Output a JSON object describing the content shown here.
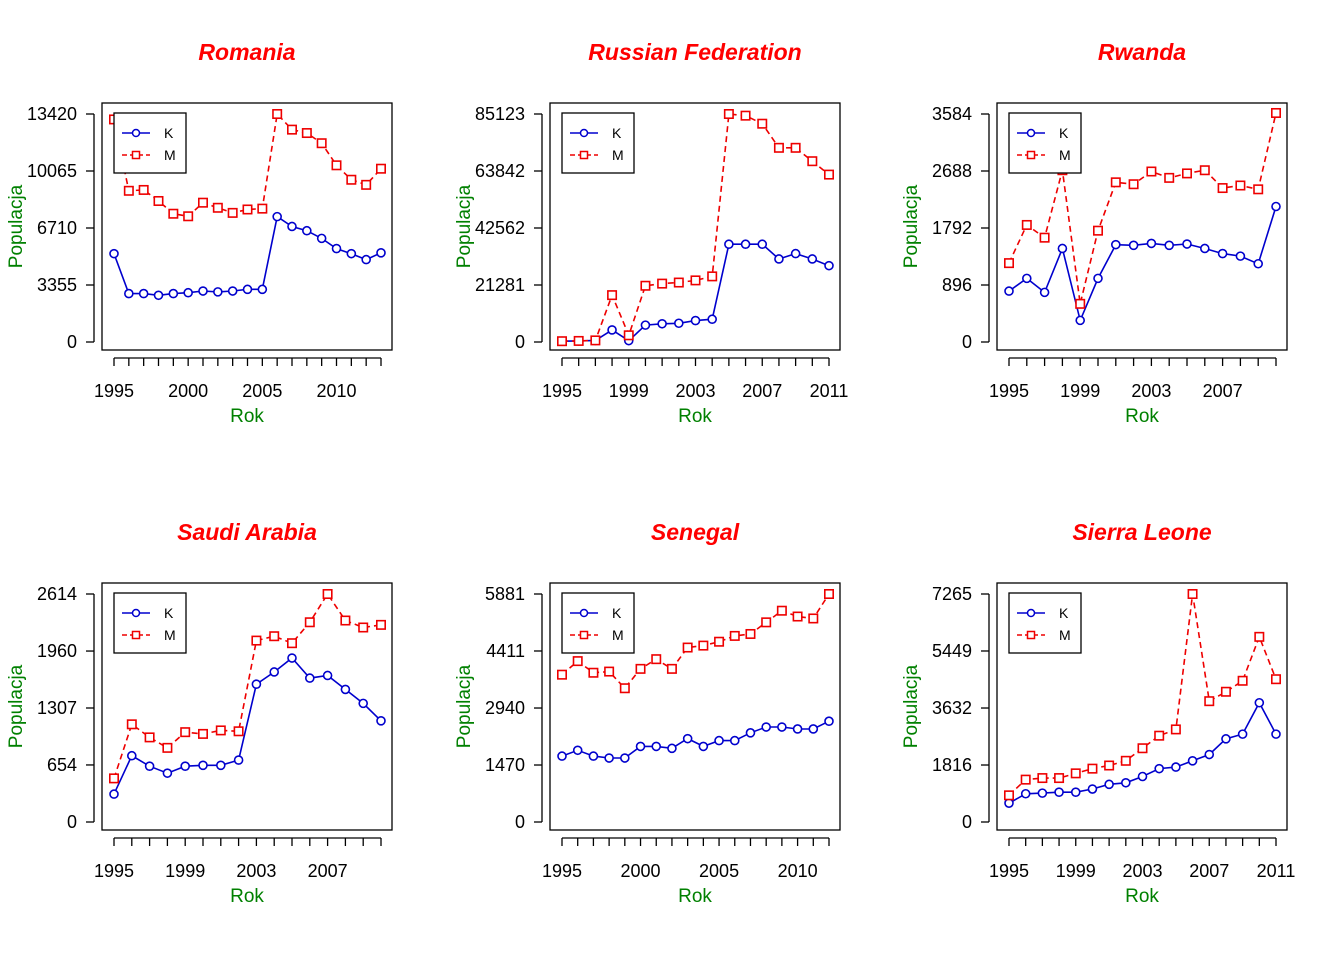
{
  "chart_data": [
    {
      "type": "line",
      "title": "Romania",
      "xlabel": "Rok",
      "ylabel": "Populacja",
      "x": [
        1995,
        1996,
        1997,
        1998,
        1999,
        2000,
        2001,
        2002,
        2003,
        2004,
        2005,
        2006,
        2007,
        2008,
        2009,
        2010,
        2011,
        2012,
        2013
      ],
      "xticks": [
        "1995",
        "2000",
        "2005",
        "2010"
      ],
      "yticks": [
        "0",
        "3355",
        "6710",
        "10065",
        "13420"
      ],
      "ylim": [
        0,
        13420
      ],
      "legend": "top-left",
      "series": [
        {
          "name": "K",
          "color": "#0000cd",
          "dash": false,
          "marker": "circle",
          "values": [
            5200,
            2850,
            2850,
            2750,
            2850,
            2900,
            3000,
            2950,
            3000,
            3100,
            3100,
            7380,
            6800,
            6550,
            6100,
            5500,
            5200,
            4850,
            5250
          ]
        },
        {
          "name": "M",
          "color": "#ee0000",
          "dash": true,
          "marker": "square",
          "values": [
            13100,
            8900,
            8950,
            8300,
            7550,
            7400,
            8200,
            7900,
            7600,
            7800,
            7850,
            13420,
            12500,
            12300,
            11700,
            10400,
            9550,
            9250,
            10200
          ]
        }
      ]
    },
    {
      "type": "line",
      "title": "Russian Federation",
      "xlabel": "Rok",
      "ylabel": "Populacja",
      "x": [
        1995,
        1996,
        1997,
        1998,
        1999,
        2000,
        2001,
        2002,
        2003,
        2004,
        2005,
        2006,
        2007,
        2008,
        2009,
        2010,
        2011
      ],
      "xticks": [
        "1995",
        "1999",
        "2003",
        "2007",
        "2011"
      ],
      "yticks": [
        "0",
        "21281",
        "42562",
        "63842",
        "85123"
      ],
      "ylim": [
        0,
        85123
      ],
      "legend": "top-left",
      "series": [
        {
          "name": "K",
          "color": "#0000cd",
          "dash": false,
          "marker": "circle",
          "values": [
            300,
            400,
            600,
            4500,
            500,
            6300,
            6800,
            7000,
            8000,
            8500,
            36500,
            36500,
            36500,
            31000,
            33000,
            31000,
            28500
          ]
        },
        {
          "name": "M",
          "color": "#ee0000",
          "dash": true,
          "marker": "square",
          "values": [
            300,
            400,
            600,
            17500,
            2500,
            21000,
            21800,
            22200,
            23000,
            24500,
            85123,
            84500,
            81500,
            72500,
            72500,
            67500,
            62500
          ]
        }
      ]
    },
    {
      "type": "line",
      "title": "Rwanda",
      "xlabel": "Rok",
      "ylabel": "Populacja",
      "x": [
        1995,
        1996,
        1997,
        1998,
        1999,
        2000,
        2001,
        2002,
        2003,
        2004,
        2005,
        2006,
        2007,
        2008,
        2009,
        2010
      ],
      "xticks": [
        "1995",
        "1999",
        "2003",
        "2007"
      ],
      "yticks": [
        "0",
        "896",
        "1792",
        "2688",
        "3584"
      ],
      "ylim": [
        0,
        3584
      ],
      "legend": "top-left",
      "series": [
        {
          "name": "K",
          "color": "#0000cd",
          "dash": false,
          "marker": "circle",
          "values": [
            800,
            1000,
            780,
            1470,
            340,
            1000,
            1530,
            1520,
            1550,
            1520,
            1540,
            1470,
            1390,
            1350,
            1230,
            2130
          ]
        },
        {
          "name": "M",
          "color": "#ee0000",
          "dash": true,
          "marker": "square",
          "values": [
            1240,
            1840,
            1640,
            2700,
            600,
            1750,
            2510,
            2480,
            2680,
            2580,
            2650,
            2700,
            2420,
            2460,
            2400,
            3600
          ]
        }
      ]
    },
    {
      "type": "line",
      "title": "Saudi Arabia",
      "xlabel": "Rok",
      "ylabel": "Populacja",
      "x": [
        1995,
        1996,
        1997,
        1998,
        1999,
        2000,
        2001,
        2002,
        2003,
        2004,
        2005,
        2006,
        2007,
        2008,
        2009,
        2010
      ],
      "xticks": [
        "1995",
        "1999",
        "2003",
        "2007"
      ],
      "yticks": [
        "0",
        "654",
        "1307",
        "1960",
        "2614"
      ],
      "ylim": [
        0,
        2614
      ],
      "legend": "top-left",
      "series": [
        {
          "name": "K",
          "color": "#0000cd",
          "dash": false,
          "marker": "circle",
          "values": [
            320,
            760,
            640,
            560,
            640,
            650,
            650,
            710,
            1580,
            1720,
            1880,
            1650,
            1680,
            1520,
            1360,
            1160
          ]
        },
        {
          "name": "M",
          "color": "#ee0000",
          "dash": true,
          "marker": "square",
          "values": [
            500,
            1120,
            970,
            850,
            1030,
            1010,
            1050,
            1040,
            2080,
            2130,
            2050,
            2290,
            2614,
            2310,
            2230,
            2260
          ]
        }
      ]
    },
    {
      "type": "line",
      "title": "Senegal",
      "xlabel": "Rok",
      "ylabel": "Populacja",
      "x": [
        1995,
        1996,
        1997,
        1998,
        1999,
        2000,
        2001,
        2002,
        2003,
        2004,
        2005,
        2006,
        2007,
        2008,
        2009,
        2010,
        2011,
        2012
      ],
      "xticks": [
        "1995",
        "2000",
        "2005",
        "2010"
      ],
      "yticks": [
        "0",
        "1470",
        "2940",
        "4411",
        "5881"
      ],
      "ylim": [
        0,
        5881
      ],
      "legend": "top-left",
      "series": [
        {
          "name": "K",
          "color": "#0000cd",
          "dash": false,
          "marker": "circle",
          "values": [
            1700,
            1850,
            1700,
            1650,
            1650,
            1950,
            1950,
            1900,
            2150,
            1950,
            2100,
            2100,
            2300,
            2450,
            2450,
            2400,
            2400,
            2600
          ]
        },
        {
          "name": "M",
          "color": "#ee0000",
          "dash": true,
          "marker": "square",
          "values": [
            3800,
            4150,
            3850,
            3880,
            3450,
            3950,
            4200,
            3950,
            4500,
            4550,
            4650,
            4800,
            4850,
            5150,
            5450,
            5300,
            5250,
            5881
          ]
        }
      ]
    },
    {
      "type": "line",
      "title": "Sierra Leone",
      "xlabel": "Rok",
      "ylabel": "Populacja",
      "x": [
        1995,
        1996,
        1997,
        1998,
        1999,
        2000,
        2001,
        2002,
        2003,
        2004,
        2005,
        2006,
        2007,
        2008,
        2009,
        2010,
        2011
      ],
      "xticks": [
        "1995",
        "1999",
        "2003",
        "2007",
        "2011"
      ],
      "yticks": [
        "0",
        "1816",
        "3632",
        "5449",
        "7265"
      ],
      "ylim": [
        0,
        7265
      ],
      "legend": "top-left",
      "series": [
        {
          "name": "K",
          "color": "#0000cd",
          "dash": false,
          "marker": "circle",
          "values": [
            600,
            900,
            920,
            950,
            950,
            1050,
            1200,
            1250,
            1450,
            1700,
            1750,
            1950,
            2150,
            2650,
            2800,
            3800,
            2800
          ]
        },
        {
          "name": "M",
          "color": "#ee0000",
          "dash": true,
          "marker": "square",
          "values": [
            850,
            1350,
            1400,
            1400,
            1550,
            1700,
            1800,
            1950,
            2350,
            2750,
            2950,
            7265,
            3850,
            4150,
            4500,
            5900,
            4550
          ]
        }
      ]
    }
  ]
}
